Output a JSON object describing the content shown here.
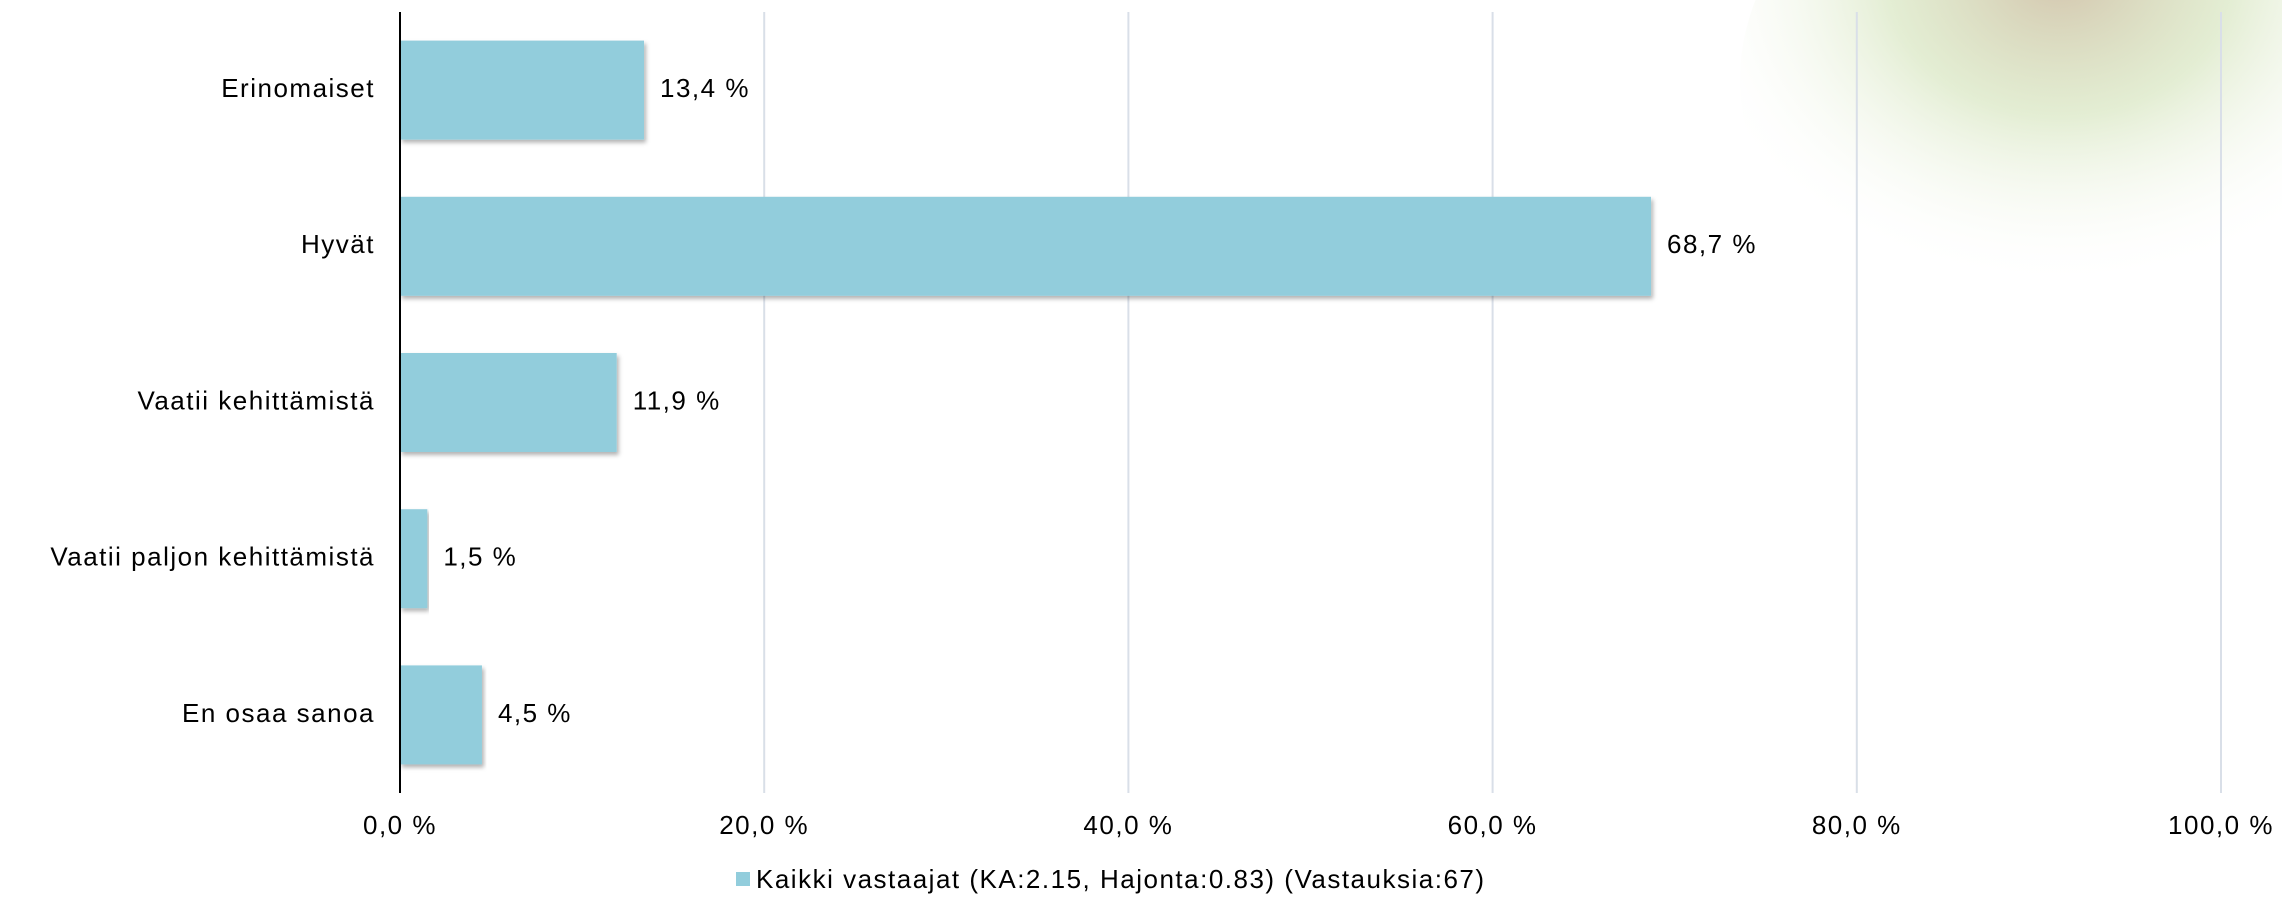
{
  "chart_data": {
    "type": "bar",
    "orientation": "horizontal",
    "categories": [
      "Erinomaiset",
      "Hyvät",
      "Vaatii kehittämistä",
      "Vaatii paljon kehittämistä",
      "En osaa sanoa"
    ],
    "series": [
      {
        "name": "Kaikki vastaajat (KA:2.15, Hajonta:0.83) (Vastauksia:67)",
        "color": "#92cddc",
        "values": [
          13.4,
          68.7,
          11.9,
          1.5,
          4.5
        ],
        "value_labels": [
          "13,4 %",
          "68,7 %",
          "11,9 %",
          "1,5 %",
          "4,5 %"
        ]
      }
    ],
    "xlim": [
      0,
      100
    ],
    "xticks": [
      {
        "value": 0,
        "label": "0,0 %"
      },
      {
        "value": 20,
        "label": "20,0 %"
      },
      {
        "value": 40,
        "label": "40,0 %"
      },
      {
        "value": 60,
        "label": "60,0 %"
      },
      {
        "value": 80,
        "label": "80,0 %"
      },
      {
        "value": 100,
        "label": "100,0 %"
      }
    ],
    "grid": true,
    "legend": "bottom"
  }
}
